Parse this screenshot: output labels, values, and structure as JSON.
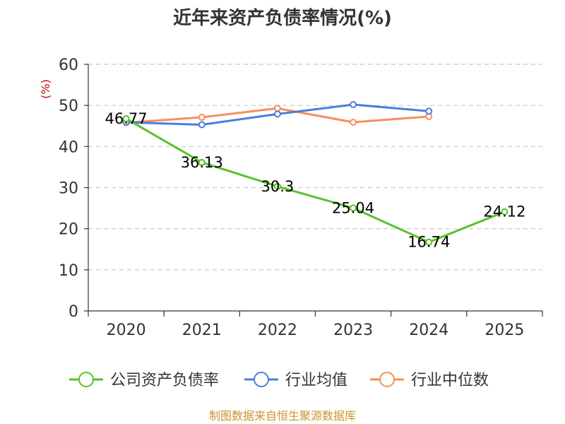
{
  "chart_data": {
    "type": "line",
    "title": "近年来资产负债率情况(%)",
    "ylabel": "(%)",
    "xlabel": "",
    "categories": [
      "2020",
      "2021",
      "2022",
      "2023",
      "2024",
      "2025"
    ],
    "ylim": [
      0,
      60
    ],
    "yticks": [
      "0",
      "10",
      "20",
      "30",
      "40",
      "50",
      "60"
    ],
    "grid": true,
    "legend_position": "bottom",
    "series": [
      {
        "name": "公司资产负债率",
        "color": "#5ac229",
        "values": [
          46.77,
          36.13,
          30.3,
          25.04,
          16.74,
          24.12
        ],
        "labels": [
          "46.77",
          "36.13",
          "30.3",
          "25.04",
          "16.74",
          "24.12"
        ]
      },
      {
        "name": "行业均值",
        "color": "#4a7fdb",
        "values": [
          45.9,
          45.3,
          47.9,
          50.2,
          48.6,
          null
        ]
      },
      {
        "name": "行业中位数",
        "color": "#f78f5a",
        "values": [
          45.8,
          47.1,
          49.3,
          45.9,
          47.3,
          null
        ]
      }
    ],
    "source": "制图数据来自恒生聚源数据库"
  }
}
